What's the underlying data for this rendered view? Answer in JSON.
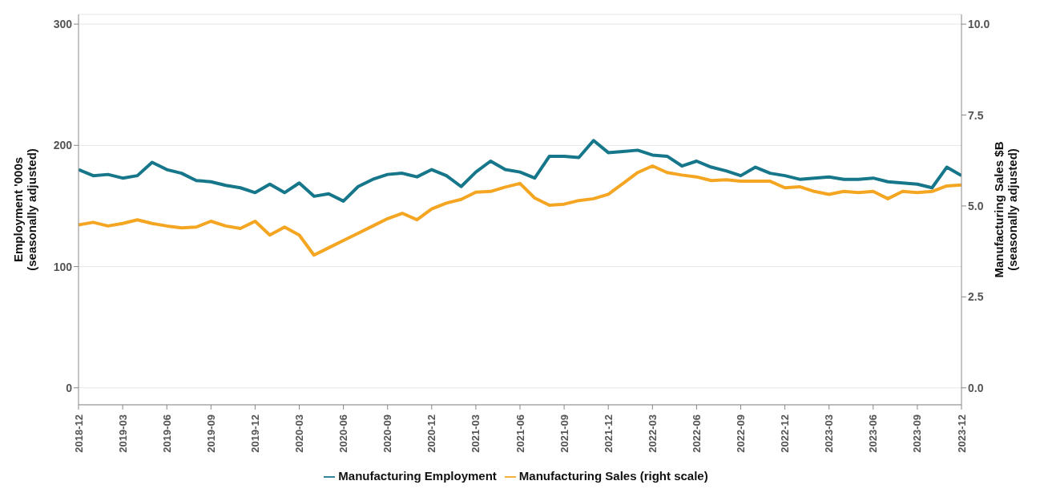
{
  "chart_data": {
    "type": "line",
    "xlabel": null,
    "ylabel": "Employment '000s\n(seasonally adjusted)",
    "y2label": "Manufacturing Sales $B\n(seasonally adjusted)",
    "x": [
      "2018-12",
      "2019-01",
      "2019-02",
      "2019-03",
      "2019-04",
      "2019-05",
      "2019-06",
      "2019-07",
      "2019-08",
      "2019-09",
      "2019-10",
      "2019-11",
      "2019-12",
      "2020-01",
      "2020-02",
      "2020-03",
      "2020-04",
      "2020-05",
      "2020-06",
      "2020-07",
      "2020-08",
      "2020-09",
      "2020-10",
      "2020-11",
      "2020-12",
      "2021-01",
      "2021-02",
      "2021-03",
      "2021-04",
      "2021-05",
      "2021-06",
      "2021-07",
      "2021-08",
      "2021-09",
      "2021-10",
      "2021-11",
      "2021-12",
      "2022-01",
      "2022-02",
      "2022-03",
      "2022-04",
      "2022-05",
      "2022-06",
      "2022-07",
      "2022-08",
      "2022-09",
      "2022-10",
      "2022-11",
      "2022-12",
      "2023-01",
      "2023-02",
      "2023-03",
      "2023-04",
      "2023-05",
      "2023-06",
      "2023-07",
      "2023-08",
      "2023-09",
      "2023-10",
      "2023-11",
      "2023-12"
    ],
    "series": [
      {
        "name": "Manufacturing Employment",
        "color": "#16768a",
        "values": [
          180,
          175,
          176,
          173,
          175,
          186,
          180,
          177,
          171,
          170,
          167,
          165,
          161,
          168,
          161,
          169,
          158,
          160,
          154,
          166,
          172,
          176,
          177,
          174,
          180,
          175,
          166,
          178,
          187,
          180,
          178,
          173,
          191,
          191,
          190,
          204,
          194,
          195,
          196,
          192,
          191,
          183,
          187,
          182,
          179,
          175,
          182,
          177,
          175,
          172,
          173,
          174,
          172,
          172,
          173,
          170,
          169,
          168,
          165,
          182,
          175
        ]
      },
      {
        "name": "Manufacturing Sales (right scale)",
        "color": "#f4a622",
        "axis": "y2",
        "values": [
          4.48,
          4.55,
          4.45,
          4.52,
          4.62,
          4.52,
          4.45,
          4.4,
          4.42,
          4.58,
          4.45,
          4.38,
          4.58,
          4.2,
          4.42,
          4.2,
          3.65,
          3.85,
          4.05,
          4.25,
          4.45,
          4.65,
          4.8,
          4.62,
          4.92,
          5.08,
          5.18,
          5.38,
          5.4,
          5.52,
          5.62,
          5.22,
          5.02,
          5.05,
          5.15,
          5.2,
          5.32,
          5.62,
          5.92,
          6.1,
          5.92,
          5.85,
          5.8,
          5.7,
          5.72,
          5.68,
          5.68,
          5.68,
          5.5,
          5.53,
          5.4,
          5.32,
          5.4,
          5.37,
          5.4,
          5.2,
          5.4,
          5.37,
          5.4,
          5.55,
          5.58
        ]
      }
    ],
    "xlim": [
      "2018-12",
      "2023-12"
    ],
    "xticks": [
      "2018-12",
      "2019-03",
      "2019-06",
      "2019-09",
      "2019-12",
      "2020-03",
      "2020-06",
      "2020-09",
      "2020-12",
      "2021-03",
      "2021-06",
      "2021-09",
      "2021-12",
      "2022-03",
      "2022-06",
      "2022-09",
      "2022-12",
      "2023-03",
      "2023-06",
      "2023-09",
      "2023-12"
    ],
    "ylim": [
      -14,
      308
    ],
    "yticks": [
      0,
      100,
      200,
      300
    ],
    "y2lim": [
      -0.467,
      10.267
    ],
    "y2ticks": [
      {
        "value": 0,
        "label": "0.0"
      },
      {
        "value": 2.5,
        "label": "2.5"
      },
      {
        "value": 5,
        "label": "5.0"
      },
      {
        "value": 7.5,
        "label": "7.5"
      },
      {
        "value": 10,
        "label": "10.0"
      }
    ],
    "grid": "y",
    "legend": "bottom",
    "marker": "none",
    "line_style": "solid"
  }
}
